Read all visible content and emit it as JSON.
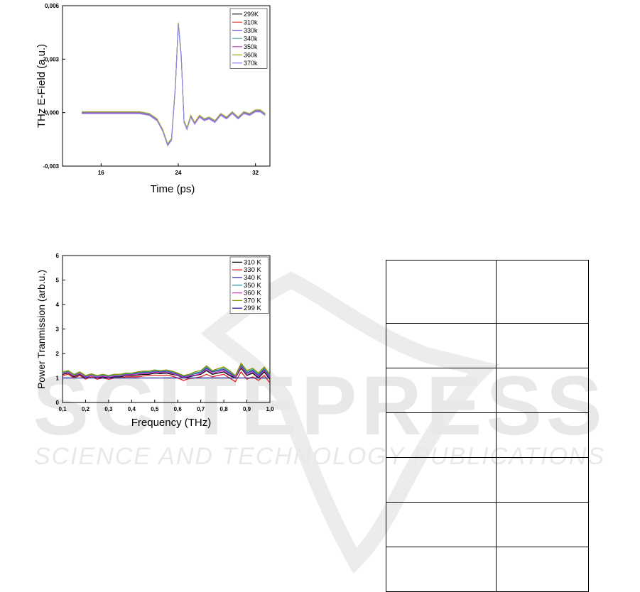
{
  "watermark": {
    "big": "SCITEPRESS",
    "small": "SCIENCE AND TECHNOLOGY PUBLICATIONS"
  },
  "chart_data": [
    {
      "type": "line",
      "xlabel": "Time (ps)",
      "ylabel": "THz E-Field (a.u.)",
      "xlim": [
        12,
        33.5
      ],
      "ylim": [
        -0.003,
        0.006
      ],
      "xticks": [
        {
          "v": 16,
          "label": "16"
        },
        {
          "v": 24,
          "label": "24"
        },
        {
          "v": 32,
          "label": "32"
        }
      ],
      "yticks": [
        {
          "v": -0.003,
          "label": "-0,003"
        },
        {
          "v": 0,
          "label": "0,000"
        },
        {
          "v": 0.003,
          "label": "0,003"
        },
        {
          "v": 0.006,
          "label": "0,006"
        }
      ],
      "legend_position": "top-right",
      "series": [
        {
          "name": "299K",
          "color": "#333333"
        },
        {
          "name": "310k",
          "color": "#e05050"
        },
        {
          "name": "330k",
          "color": "#5a5ad0"
        },
        {
          "name": "340k",
          "color": "#55aaaa"
        },
        {
          "name": "350k",
          "color": "#cc55cc"
        },
        {
          "name": "360k",
          "color": "#aaaa30"
        },
        {
          "name": "370k",
          "color": "#8888ee"
        }
      ],
      "x": [
        14.0,
        15.5,
        17.0,
        18.5,
        20.0,
        21.0,
        21.8,
        22.4,
        22.9,
        23.3,
        23.7,
        24.0,
        24.3,
        24.6,
        24.9,
        25.3,
        25.7,
        26.2,
        26.7,
        27.2,
        27.8,
        28.4,
        29.0,
        29.6,
        30.2,
        30.8,
        31.4,
        32.0,
        32.5,
        33.0
      ],
      "values": [
        0.0,
        0.0,
        0.0,
        0.0,
        0.0,
        -0.0001,
        -0.0004,
        -0.001,
        -0.0018,
        -0.0015,
        0.0015,
        0.005,
        0.0032,
        -0.0005,
        -0.0009,
        -0.0002,
        -0.0006,
        -0.0002,
        -0.0004,
        -0.0003,
        -0.0005,
        -0.0001,
        -0.0003,
        0.0,
        -0.0003,
        0.0,
        -0.0001,
        0.0001,
        0.0001,
        -0.0001
      ]
    },
    {
      "type": "line",
      "xlabel": "Frequency (THz)",
      "ylabel": "Power Tranmission (arb.u.)",
      "xlim": [
        0.1,
        1.0
      ],
      "ylim": [
        0,
        6
      ],
      "xticks": [
        {
          "v": 0.1,
          "label": "0,1"
        },
        {
          "v": 0.2,
          "label": "0,2"
        },
        {
          "v": 0.3,
          "label": "0,3"
        },
        {
          "v": 0.4,
          "label": "0,4"
        },
        {
          "v": 0.5,
          "label": "0,5"
        },
        {
          "v": 0.6,
          "label": "0,6"
        },
        {
          "v": 0.7,
          "label": "0,7"
        },
        {
          "v": 0.8,
          "label": "0,8"
        },
        {
          "v": 0.9,
          "label": "0,9"
        },
        {
          "v": 1.0,
          "label": "1,0"
        }
      ],
      "yticks": [
        {
          "v": 0,
          "label": "0"
        },
        {
          "v": 1,
          "label": "1"
        },
        {
          "v": 2,
          "label": "2"
        },
        {
          "v": 3,
          "label": "3"
        },
        {
          "v": 4,
          "label": "4"
        },
        {
          "v": 5,
          "label": "5"
        },
        {
          "v": 6,
          "label": "6"
        }
      ],
      "legend_position": "top-right",
      "x": [
        0.1,
        0.125,
        0.15,
        0.175,
        0.2,
        0.225,
        0.25,
        0.275,
        0.3,
        0.325,
        0.35,
        0.375,
        0.4,
        0.425,
        0.45,
        0.475,
        0.5,
        0.525,
        0.55,
        0.575,
        0.6,
        0.625,
        0.65,
        0.675,
        0.7,
        0.725,
        0.75,
        0.775,
        0.8,
        0.825,
        0.85,
        0.875,
        0.9,
        0.925,
        0.95,
        0.975,
        1.0
      ],
      "series": [
        {
          "name": "310 K",
          "color": "#000000",
          "values": [
            1.15,
            1.2,
            1.05,
            1.15,
            1.0,
            1.1,
            1.0,
            1.05,
            1.0,
            1.05,
            1.05,
            1.1,
            1.1,
            1.12,
            1.15,
            1.15,
            1.2,
            1.18,
            1.2,
            1.15,
            1.1,
            1.0,
            1.05,
            1.1,
            1.15,
            1.3,
            1.15,
            1.2,
            1.25,
            1.1,
            1.0,
            1.4,
            1.1,
            1.2,
            1.0,
            1.25,
            0.95
          ]
        },
        {
          "name": "330 K",
          "color": "#e02020",
          "values": [
            1.1,
            1.15,
            1.0,
            1.1,
            0.95,
            1.05,
            0.95,
            1.0,
            0.95,
            1.0,
            1.0,
            1.05,
            1.05,
            1.05,
            1.08,
            1.1,
            1.12,
            1.1,
            1.12,
            1.08,
            1.0,
            0.9,
            0.98,
            1.0,
            1.05,
            1.15,
            1.05,
            1.1,
            1.15,
            1.0,
            0.85,
            1.25,
            0.95,
            1.05,
            0.9,
            1.1,
            0.8
          ]
        },
        {
          "name": "340 K",
          "color": "#3030b0",
          "values": [
            1.2,
            1.25,
            1.1,
            1.2,
            1.05,
            1.12,
            1.05,
            1.1,
            1.05,
            1.1,
            1.1,
            1.15,
            1.15,
            1.2,
            1.22,
            1.22,
            1.28,
            1.25,
            1.28,
            1.22,
            1.15,
            1.05,
            1.1,
            1.18,
            1.22,
            1.4,
            1.25,
            1.3,
            1.35,
            1.2,
            1.05,
            1.5,
            1.2,
            1.3,
            1.1,
            1.35,
            1.05
          ]
        },
        {
          "name": "350 K",
          "color": "#30a0a0",
          "values": [
            1.22,
            1.27,
            1.12,
            1.22,
            1.07,
            1.14,
            1.07,
            1.12,
            1.07,
            1.12,
            1.12,
            1.17,
            1.18,
            1.22,
            1.25,
            1.25,
            1.3,
            1.28,
            1.3,
            1.25,
            1.18,
            1.08,
            1.12,
            1.2,
            1.25,
            1.45,
            1.28,
            1.33,
            1.4,
            1.25,
            1.08,
            1.55,
            1.25,
            1.35,
            1.15,
            1.4,
            1.1
          ]
        },
        {
          "name": "360 K",
          "color": "#c040c0",
          "values": [
            1.18,
            1.22,
            1.08,
            1.18,
            1.03,
            1.1,
            1.03,
            1.08,
            1.03,
            1.08,
            1.08,
            1.12,
            1.13,
            1.16,
            1.18,
            1.18,
            1.24,
            1.22,
            1.24,
            1.18,
            1.12,
            1.02,
            1.08,
            1.12,
            1.18,
            1.35,
            1.2,
            1.25,
            1.3,
            1.15,
            1.02,
            1.45,
            1.15,
            1.25,
            1.05,
            1.3,
            1.0
          ]
        },
        {
          "name": "370 K",
          "color": "#909000",
          "values": [
            1.25,
            1.3,
            1.15,
            1.25,
            1.1,
            1.17,
            1.1,
            1.15,
            1.1,
            1.15,
            1.15,
            1.2,
            1.2,
            1.25,
            1.28,
            1.28,
            1.33,
            1.3,
            1.33,
            1.28,
            1.2,
            1.1,
            1.15,
            1.25,
            1.3,
            1.5,
            1.3,
            1.38,
            1.45,
            1.3,
            1.1,
            1.6,
            1.3,
            1.4,
            1.2,
            1.45,
            1.15
          ]
        },
        {
          "name": "299 K",
          "color": "#2020a0",
          "values": [
            1.0,
            1.0,
            1.0,
            1.0,
            1.0,
            1.0,
            1.0,
            1.0,
            1.0,
            1.0,
            1.0,
            1.0,
            1.0,
            1.0,
            1.0,
            1.0,
            1.0,
            1.0,
            1.0,
            1.0,
            1.0,
            1.0,
            1.0,
            1.0,
            1.0,
            1.0,
            1.0,
            1.0,
            1.0,
            1.0,
            1.0,
            1.0,
            1.0,
            1.0,
            1.0,
            1.0,
            1.0
          ]
        }
      ]
    }
  ],
  "table": {
    "rows": [
      [
        "",
        ""
      ],
      [
        "",
        ""
      ],
      [
        "",
        ""
      ],
      [
        "",
        ""
      ],
      [
        "",
        ""
      ],
      [
        "",
        ""
      ],
      [
        "",
        ""
      ]
    ]
  }
}
